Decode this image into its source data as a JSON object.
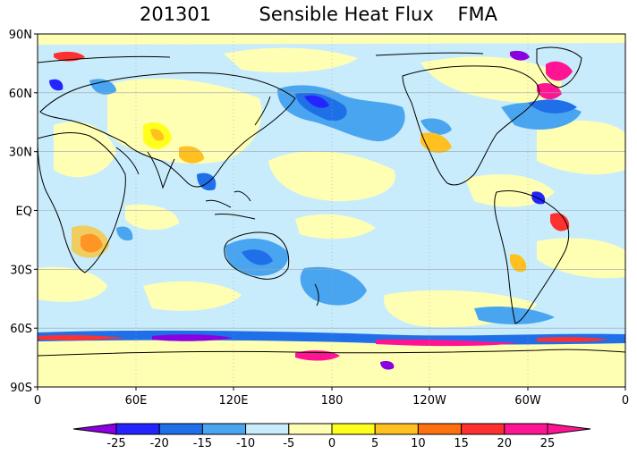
{
  "title": {
    "period": "201301",
    "variable": "Sensible Heat Flux",
    "season": "FMA"
  },
  "map": {
    "type": "global-contour-map",
    "projection": "equirectangular",
    "lon_range": [
      0,
      360
    ],
    "lat_range": [
      -90,
      90
    ],
    "grid": true,
    "y_tick_labels": [
      "90N",
      "60N",
      "30N",
      "EQ",
      "30S",
      "60S",
      "90S"
    ],
    "x_tick_labels": [
      "0",
      "60E",
      "120E",
      "180",
      "120W",
      "60W",
      "0"
    ]
  },
  "colorbar": {
    "labels": [
      "-25",
      "-20",
      "-15",
      "-10",
      "-5",
      "0",
      "5",
      "10",
      "15",
      "20",
      "25"
    ],
    "colors": [
      "#8a00e0",
      "#2424ff",
      "#1f6fe8",
      "#4aa5f0",
      "#c8ecfc",
      "#ffffb4",
      "#ffff1e",
      "#ffc020",
      "#ff7010",
      "#ff3030",
      "#ff1493",
      "#8000d8"
    ]
  },
  "colors": {
    "ocean_base": "#c8ecfc",
    "land_outline": "#000000",
    "neg_light": "#4aa5f0",
    "neg_mid": "#1f6fe8",
    "neg_dark": "#2424ff",
    "neg_extreme": "#8a00e0",
    "pos_light": "#ffffb4",
    "pos_mid": "#ffff1e",
    "pos_orange": "#ffc020",
    "pos_red": "#ff3030",
    "pos_extreme": "#ff1493"
  }
}
